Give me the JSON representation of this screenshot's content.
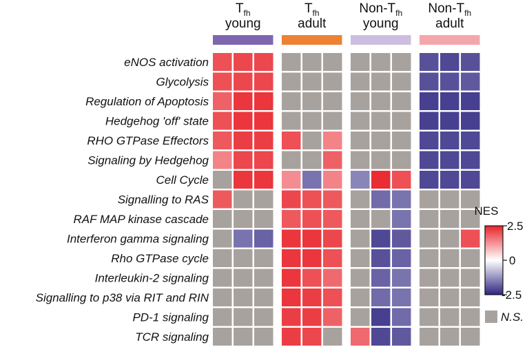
{
  "chart_data": {
    "type": "heatmap",
    "groups": [
      {
        "title": "T",
        "subscript": "fh",
        "subtitle": "young",
        "color": "#7e67b0",
        "columns": 3
      },
      {
        "title": "T",
        "subscript": "fh",
        "subtitle": "adult",
        "color": "#ed8233",
        "columns": 3
      },
      {
        "title": "Non-T",
        "subscript": "fh",
        "subtitle": "young",
        "color": "#cdbde1",
        "columns": 3
      },
      {
        "title": "Non-T",
        "subscript": "fh",
        "subtitle": "adult",
        "color": "#f3a7ab",
        "columns": 3
      }
    ],
    "rows": [
      "eNOS activation",
      "Glycolysis",
      "Regulation of Apoptosis",
      "Hedgehog 'off' state",
      "RHO GTPase Effectors",
      "Signaling by Hedgehog",
      "Cell Cycle",
      "Signalling to RAS",
      "RAF MAP kinase cascade",
      "Interferon gamma signaling",
      "Rho GTPase cycle",
      "Interleukin-2 signaling",
      "Signalling to p38 via RIT and RIN",
      "PD-1 signaling",
      "TCR signaling"
    ],
    "values": [
      [
        2.0,
        2.1,
        2.1,
        null,
        null,
        null,
        null,
        null,
        null,
        -2.0,
        -2.1,
        -2.0
      ],
      [
        2.0,
        2.1,
        2.1,
        null,
        null,
        null,
        null,
        null,
        null,
        -2.0,
        -2.0,
        -1.9
      ],
      [
        1.8,
        2.3,
        2.3,
        null,
        null,
        null,
        null,
        null,
        null,
        -2.2,
        -2.2,
        -2.2
      ],
      [
        2.0,
        2.3,
        2.3,
        null,
        null,
        null,
        null,
        null,
        null,
        -2.2,
        -2.2,
        -2.2
      ],
      [
        1.9,
        2.2,
        2.2,
        2.0,
        null,
        1.4,
        null,
        null,
        null,
        -2.1,
        -2.1,
        -2.1
      ],
      [
        1.4,
        2.1,
        2.1,
        null,
        null,
        1.8,
        null,
        null,
        null,
        -2.1,
        -2.1,
        -2.1
      ],
      [
        null,
        2.3,
        2.3,
        1.3,
        -1.6,
        1.4,
        -1.4,
        2.4,
        2.0,
        -2.1,
        -2.1,
        -2.1
      ],
      [
        1.9,
        null,
        null,
        2.1,
        2.0,
        1.9,
        null,
        -1.7,
        -1.6,
        null,
        null,
        null
      ],
      [
        null,
        null,
        null,
        1.9,
        2.0,
        1.9,
        null,
        null,
        -1.6,
        null,
        null,
        null
      ],
      [
        null,
        -1.6,
        -1.8,
        2.3,
        2.3,
        2.1,
        null,
        -2.1,
        -1.9,
        null,
        null,
        2.0
      ],
      [
        null,
        null,
        null,
        2.3,
        2.3,
        2.0,
        null,
        -2.0,
        -1.8,
        null,
        null,
        null
      ],
      [
        null,
        null,
        null,
        2.3,
        2.0,
        1.7,
        null,
        -1.8,
        -1.6,
        null,
        null,
        null
      ],
      [
        null,
        null,
        null,
        2.3,
        2.2,
        2.0,
        null,
        -1.7,
        -1.6,
        null,
        null,
        null
      ],
      [
        null,
        null,
        null,
        2.2,
        2.2,
        1.8,
        null,
        -2.2,
        -1.7,
        null,
        null,
        null
      ],
      [
        null,
        null,
        null,
        2.2,
        2.1,
        null,
        1.7,
        -2.1,
        -1.9,
        null,
        null,
        null
      ]
    ],
    "legend": {
      "title": "NES",
      "max": 2.5,
      "mid": 0,
      "min": -2.5,
      "max_label": "2.5",
      "mid_label": "0",
      "min_label": "-2.5",
      "ns_label": "N.S.",
      "color_high": "#e8242b",
      "color_mid": "#ffffff",
      "color_low": "#2e2580",
      "ns_color": "#a8a29e"
    }
  }
}
